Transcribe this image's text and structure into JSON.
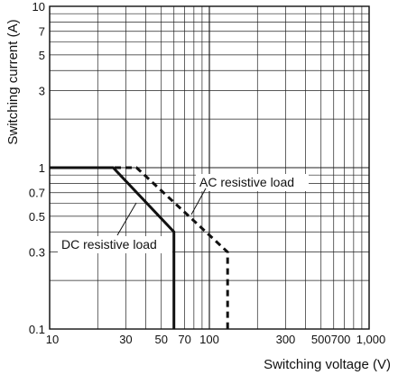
{
  "chart_data": {
    "type": "line",
    "xlabel": "Switching voltage (V)",
    "ylabel": "Switching current (A)",
    "x_scale": "log",
    "y_scale": "log",
    "xlim": [
      10,
      1000
    ],
    "ylim": [
      0.1,
      10
    ],
    "grid": true,
    "x_tick_labels": [
      {
        "value": 10,
        "label": "10"
      },
      {
        "value": 30,
        "label": "30"
      },
      {
        "value": 50,
        "label": "50"
      },
      {
        "value": 70,
        "label": "70"
      },
      {
        "value": 100,
        "label": "100"
      },
      {
        "value": 300,
        "label": "300"
      },
      {
        "value": 500,
        "label": "500"
      },
      {
        "value": 700,
        "label": "700"
      },
      {
        "value": 1000,
        "label": "1,000"
      }
    ],
    "y_tick_labels": [
      {
        "value": 0.1,
        "label": "0.1"
      },
      {
        "value": 0.3,
        "label": "0.3"
      },
      {
        "value": 0.5,
        "label": "0.5"
      },
      {
        "value": 0.7,
        "label": "0.7"
      },
      {
        "value": 1,
        "label": "1"
      },
      {
        "value": 3,
        "label": "3"
      },
      {
        "value": 5,
        "label": "5"
      },
      {
        "value": 7,
        "label": "7"
      },
      {
        "value": 10,
        "label": "10"
      }
    ],
    "series": [
      {
        "name": "DC resistive load",
        "line_style": "solid",
        "color": "#111111",
        "points": [
          [
            10,
            1
          ],
          [
            25,
            1
          ],
          [
            60,
            0.4
          ],
          [
            60,
            0.1
          ]
        ]
      },
      {
        "name": "AC resistive load",
        "line_style": "dashed",
        "color": "#111111",
        "points": [
          [
            10,
            1
          ],
          [
            35,
            1
          ],
          [
            130,
            0.3
          ],
          [
            130,
            0.1
          ]
        ]
      }
    ],
    "annotations": [
      {
        "text": "AC resistive load",
        "series": 1
      },
      {
        "text": "DC resistive load",
        "series": 0
      }
    ]
  }
}
